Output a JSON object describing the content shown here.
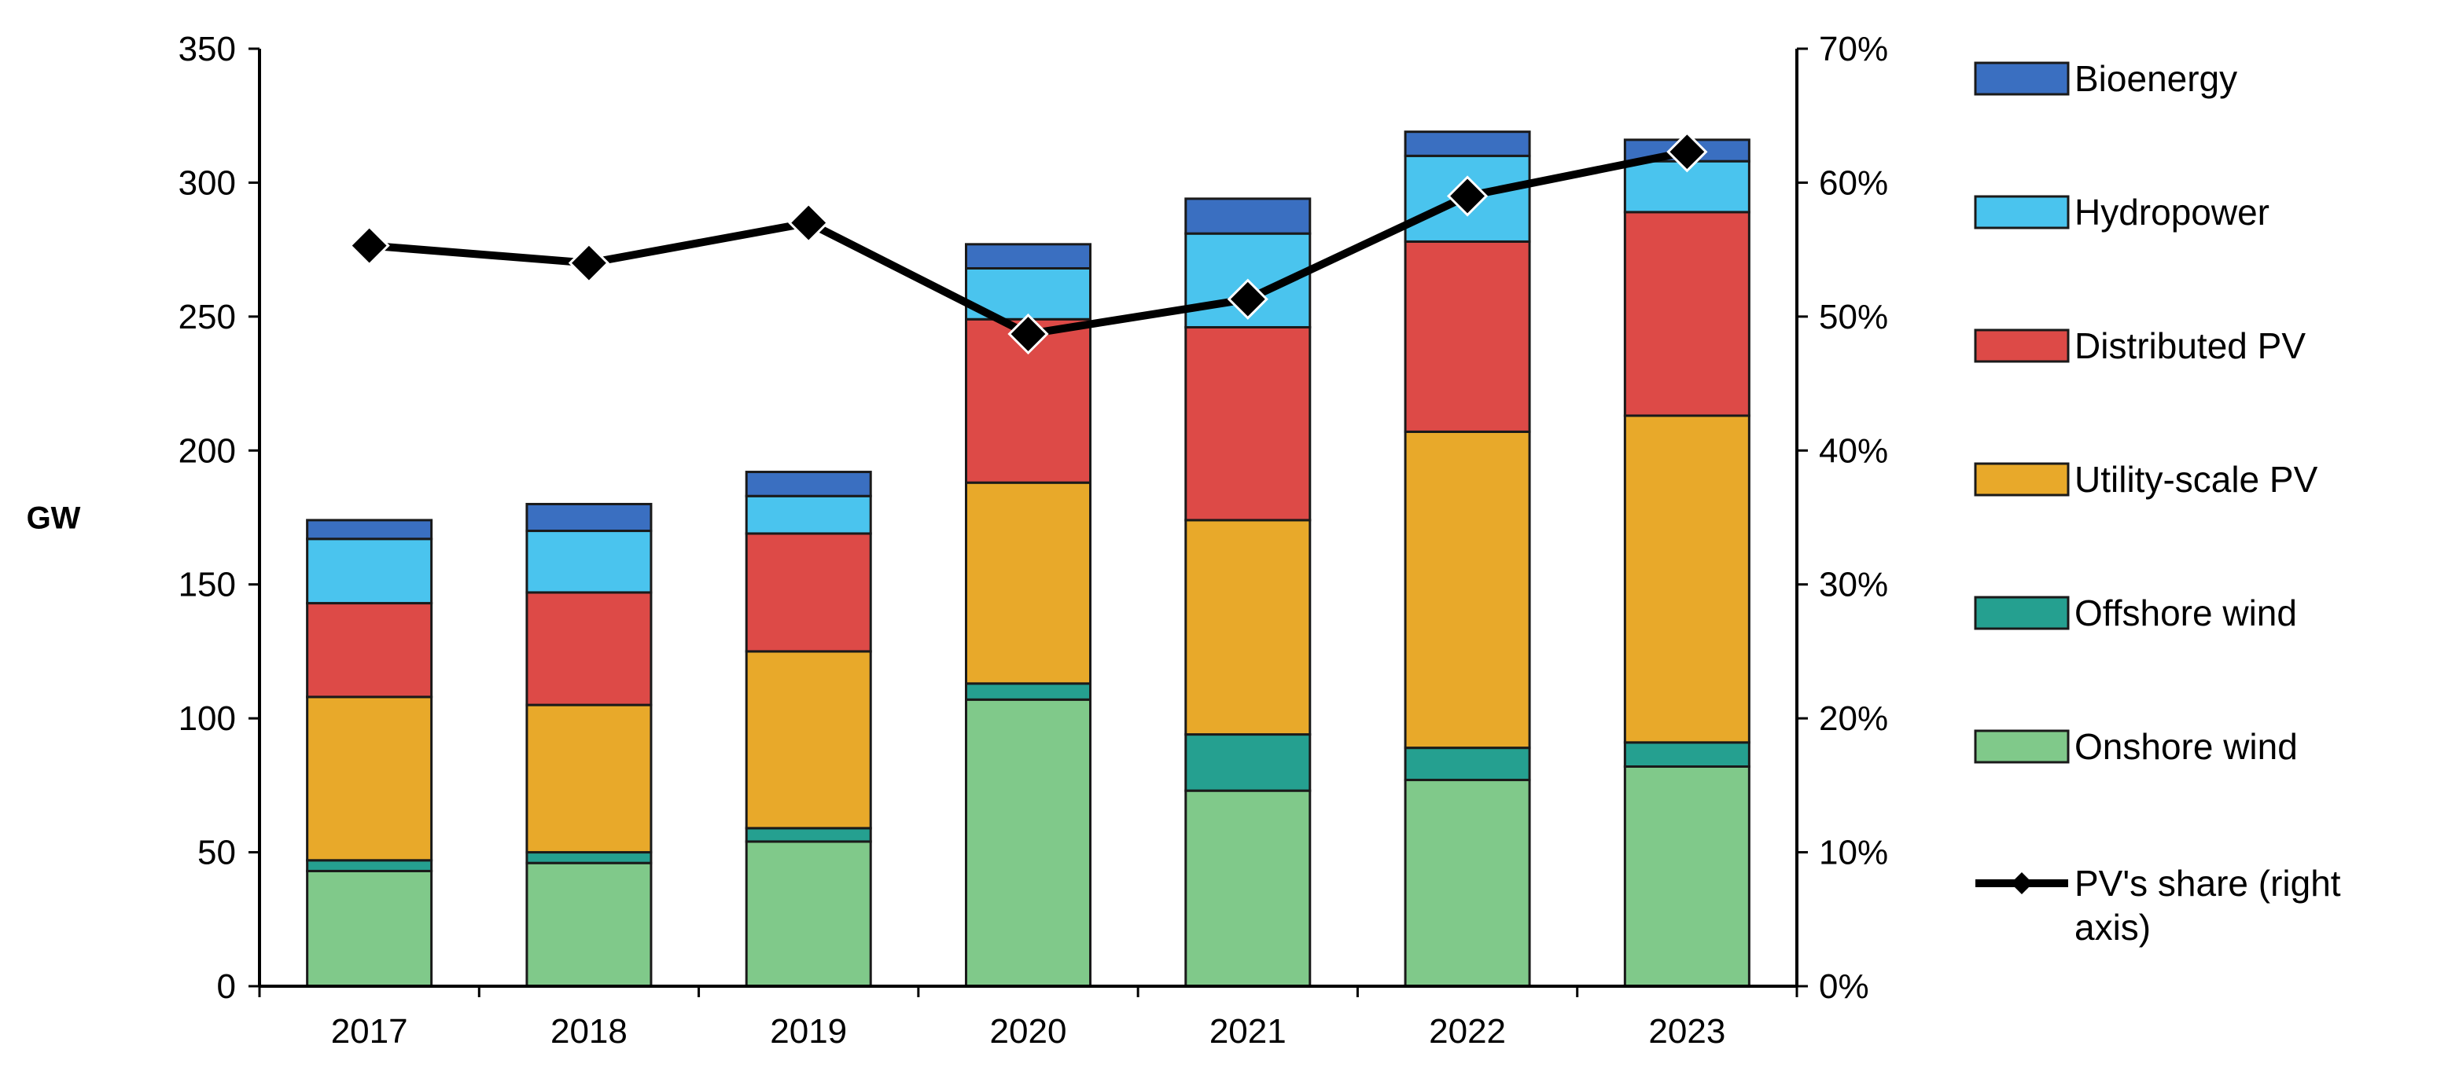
{
  "chart_data": {
    "type": "bar",
    "stacked": true,
    "title": "",
    "xlabel": "",
    "ylabel": "GW",
    "y2label": "",
    "ylim": [
      0,
      350
    ],
    "y2lim": [
      0,
      70
    ],
    "y_ticks": [
      "0",
      "50",
      "100",
      "150",
      "200",
      "250",
      "300",
      "350"
    ],
    "y2_ticks": [
      "0%",
      "10%",
      "20%",
      "30%",
      "40%",
      "50%",
      "60%",
      "70%"
    ],
    "categories": [
      "2017",
      "2018",
      "2019",
      "2020",
      "2021",
      "2022",
      "2023"
    ],
    "series": [
      {
        "name": "Onshore wind",
        "color": "#80C98A",
        "values": [
          43,
          46,
          54,
          107,
          73,
          77,
          82
        ]
      },
      {
        "name": "Offshore wind",
        "color": "#25A090",
        "values": [
          4,
          4,
          5,
          6,
          21,
          12,
          9
        ]
      },
      {
        "name": "Utility-scale PV",
        "color": "#E8A92A",
        "values": [
          61,
          55,
          66,
          75,
          80,
          118,
          122
        ]
      },
      {
        "name": "Distributed PV",
        "color": "#DD4A47",
        "values": [
          35,
          42,
          44,
          61,
          72,
          71,
          76
        ]
      },
      {
        "name": "Hydropower",
        "color": "#4AC4EE",
        "values": [
          24,
          23,
          14,
          19,
          35,
          32,
          19
        ]
      },
      {
        "name": "Bioenergy",
        "color": "#3A6FC1",
        "values": [
          7,
          10,
          9,
          9,
          13,
          9,
          8
        ]
      }
    ],
    "line_series": {
      "name": "PV's share (right axis)",
      "axis": "right",
      "color": "#000000",
      "values": [
        55.3,
        54.0,
        57.0,
        48.7,
        51.3,
        59.0,
        62.3
      ]
    },
    "legend": {
      "position": "right",
      "order": [
        "Bioenergy",
        "Hydropower",
        "Distributed PV",
        "Utility-scale PV",
        "Offshore wind",
        "Onshore wind"
      ],
      "line_label_lines": [
        "PV's share (right",
        "axis)"
      ]
    },
    "grid": false
  }
}
